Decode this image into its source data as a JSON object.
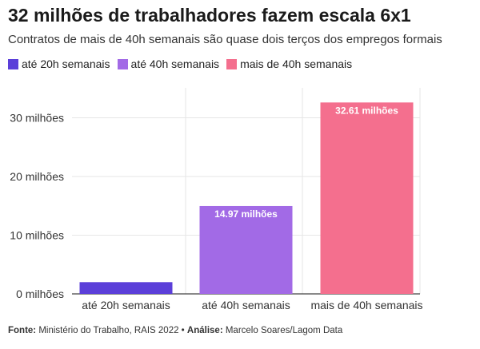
{
  "title": "32 milhões de trabalhadores fazem escala 6x1",
  "subtitle": "Contratos de mais de 40h semanais são quase dois terços dos empregos formais",
  "legend": [
    {
      "label": "até 20h semanais",
      "color": "#5b3fd9"
    },
    {
      "label": "até 40h semanais",
      "color": "#a26ae6"
    },
    {
      "label": "mais de 40h semanais",
      "color": "#f46f8e"
    }
  ],
  "footer": {
    "source_label": "Fonte:",
    "source_text": " Ministério do Trabalho, RAIS 2022 • ",
    "analysis_label": "Análise:",
    "analysis_text": " Marcelo Soares/Lagom Data"
  },
  "chart_data": {
    "type": "bar",
    "categories": [
      "até 20h semanais",
      "até 40h semanais",
      "mais de 40h semanais"
    ],
    "values": [
      2.0,
      14.97,
      32.61
    ],
    "data_labels": [
      "",
      "14.97 milhões",
      "32.61 milhões"
    ],
    "colors": [
      "#5b3fd9",
      "#a26ae6",
      "#f46f8e"
    ],
    "yticks": [
      0,
      10,
      20,
      30
    ],
    "ytick_labels": [
      "0 milhões",
      "10 milhões",
      "20 milhões",
      "30 milhões"
    ],
    "ylim": [
      0,
      35
    ],
    "grid": true,
    "legend_position": "top-left"
  }
}
